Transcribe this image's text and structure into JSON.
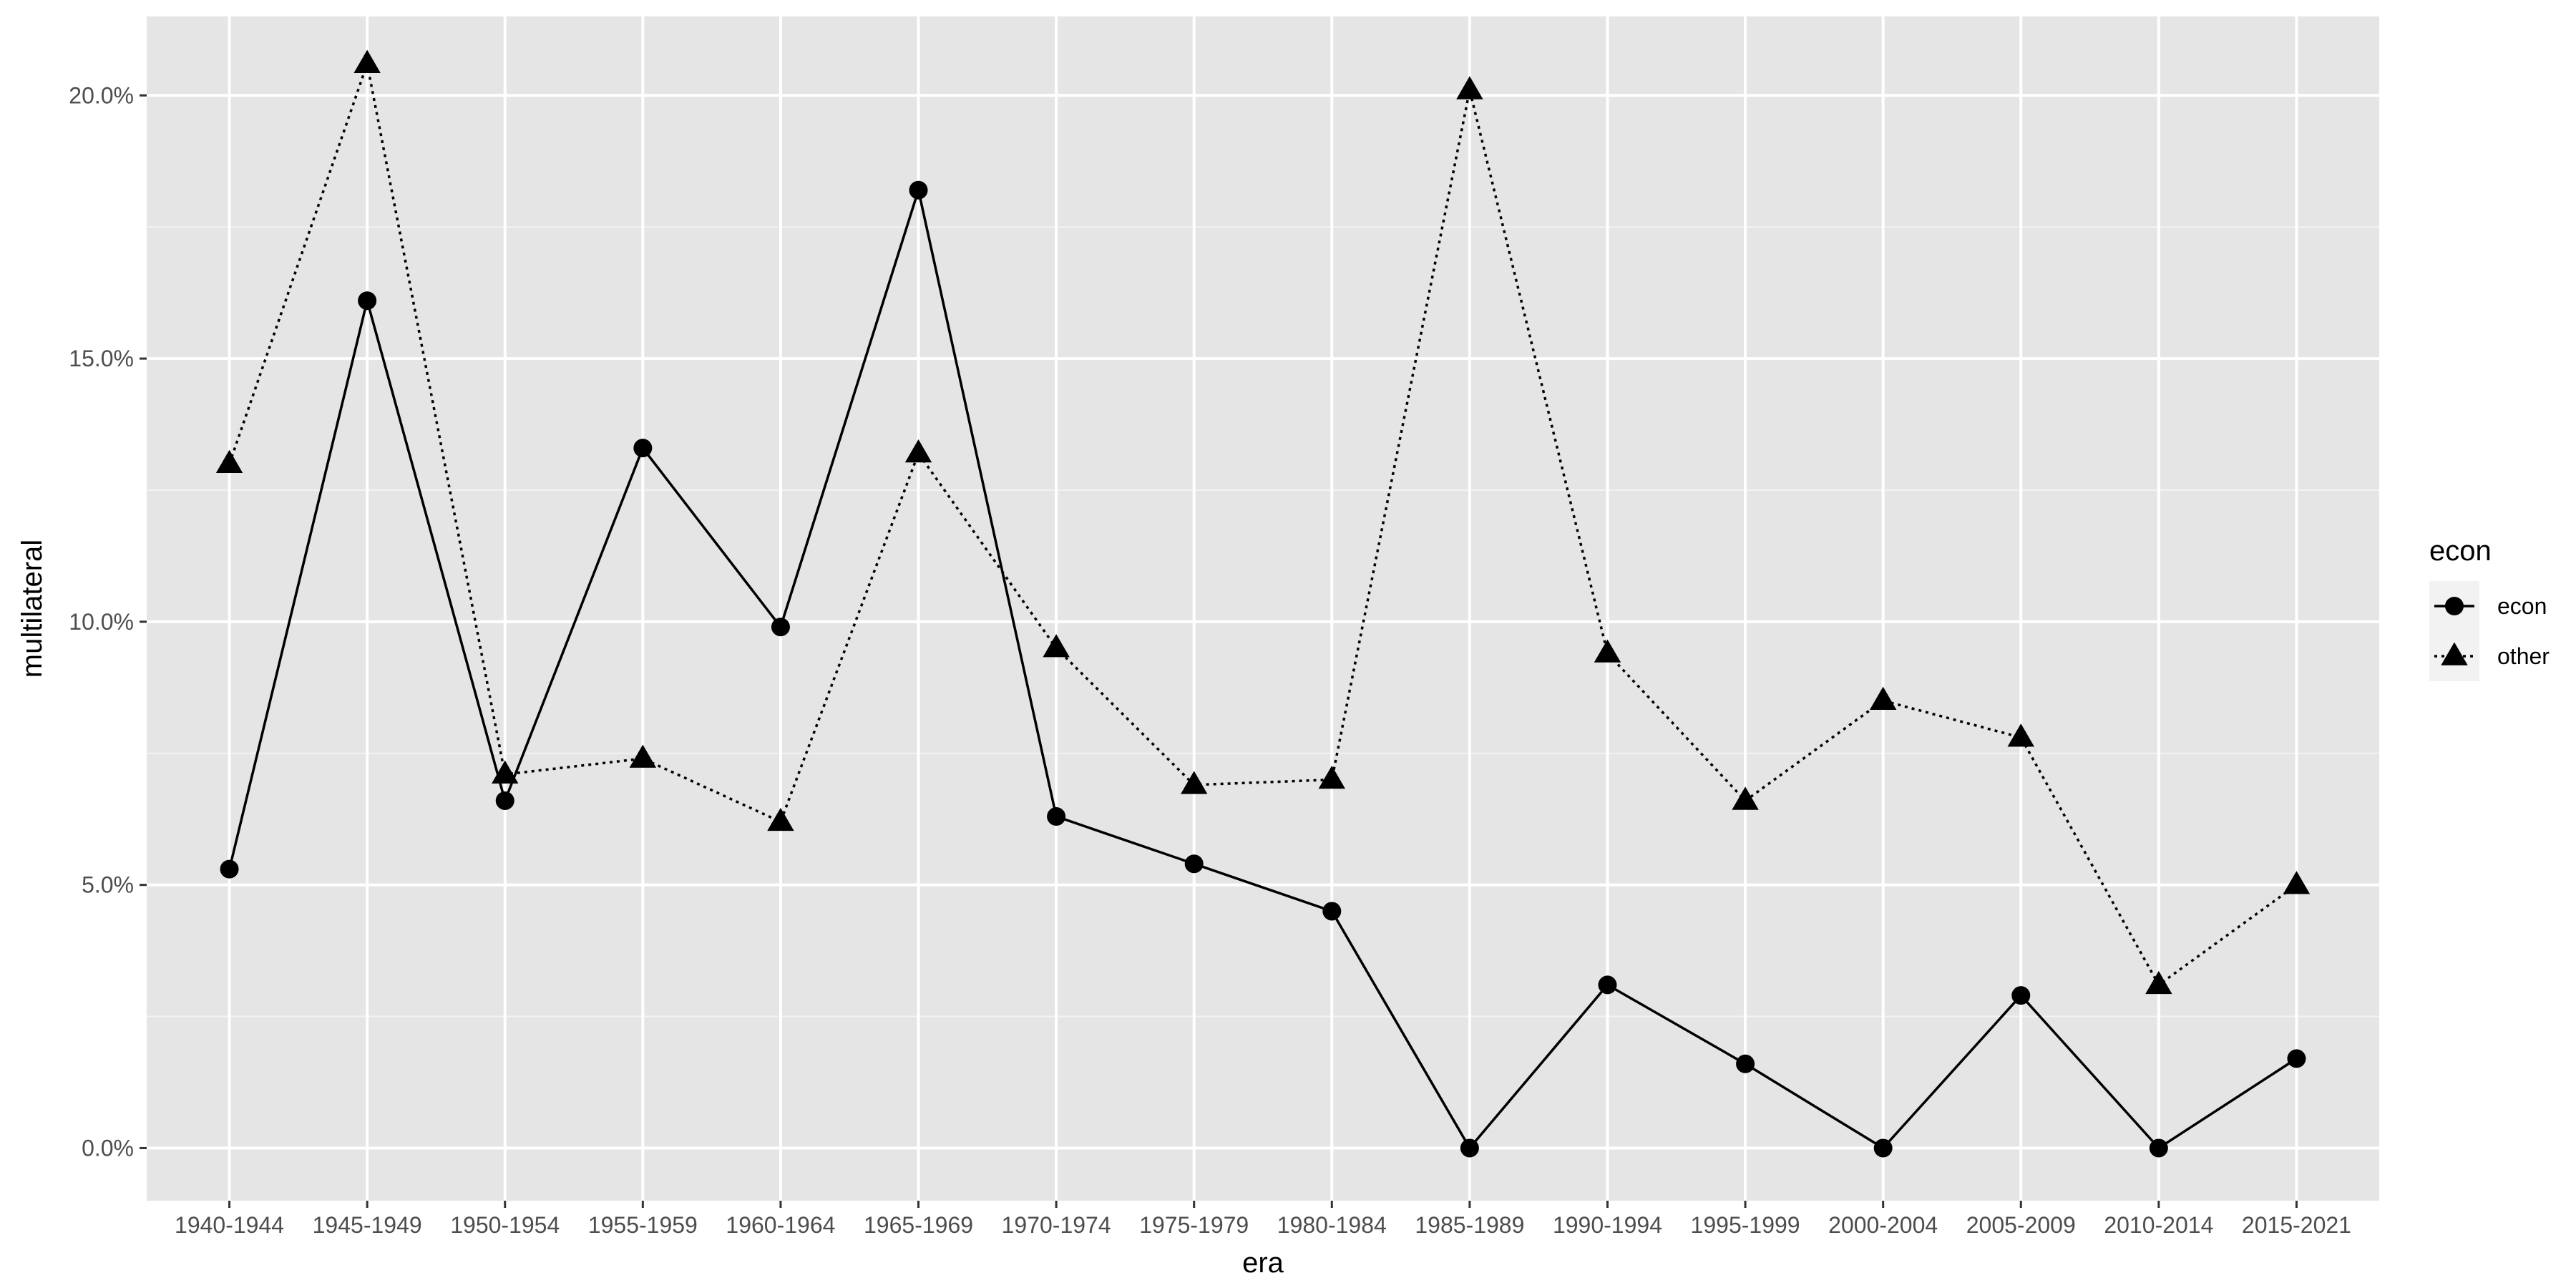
{
  "chart_data": {
    "type": "line",
    "xlabel": "era",
    "ylabel": "multilateral",
    "categories": [
      "1940-1944",
      "1945-1949",
      "1950-1954",
      "1955-1959",
      "1960-1964",
      "1965-1969",
      "1970-1974",
      "1975-1979",
      "1980-1984",
      "1985-1989",
      "1990-1994",
      "1995-1999",
      "2000-2004",
      "2005-2009",
      "2010-2014",
      "2015-2021"
    ],
    "ylim": [
      -1.0,
      21.5
    ],
    "y_ticks": [
      0,
      5,
      10,
      15,
      20
    ],
    "y_tick_labels": [
      "0.0%",
      "5.0%",
      "10.0%",
      "15.0%",
      "20.0%"
    ],
    "grid": true,
    "legend": {
      "title": "econ",
      "position": "right",
      "entries": [
        "econ",
        "other"
      ]
    },
    "series": [
      {
        "name": "econ",
        "marker": "circle",
        "line": "solid",
        "values": [
          5.3,
          16.1,
          6.6,
          13.3,
          9.9,
          18.2,
          6.3,
          5.4,
          4.5,
          0.0,
          3.1,
          1.6,
          0.0,
          2.9,
          0.0,
          1.7
        ]
      },
      {
        "name": "other",
        "marker": "triangle",
        "line": "dotted",
        "values": [
          13.0,
          20.6,
          7.1,
          7.4,
          6.2,
          13.2,
          9.5,
          6.9,
          7.0,
          20.1,
          9.4,
          6.6,
          8.5,
          7.8,
          3.1,
          5.0
        ]
      }
    ],
    "colors": {
      "panel": "#e5e5e5",
      "grid": "#ffffff",
      "series": "#000000",
      "legend_key_bg": "#f2f2f2"
    }
  }
}
